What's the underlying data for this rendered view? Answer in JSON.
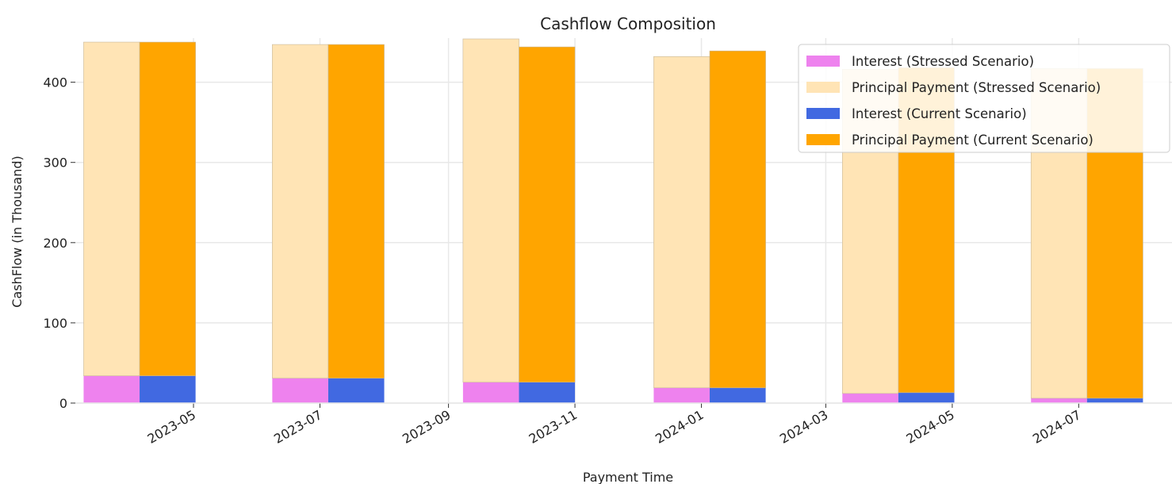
{
  "chart_data": {
    "type": "bar",
    "stacked": true,
    "title": "Cashflow Composition",
    "xlabel": "Payment Time",
    "ylabel": "CashFlow (in Thousand)",
    "ylim": [
      0,
      455
    ],
    "yticks": [
      0,
      100,
      200,
      300,
      400
    ],
    "xlim": [
      "2023-03-05",
      "2024-08-15"
    ],
    "xticks": [
      "2023-05",
      "2023-07",
      "2023-09",
      "2023-11",
      "2024-01",
      "2024-03",
      "2024-05",
      "2024-07"
    ],
    "grid": true,
    "legend_position": "top-right",
    "groups": [
      {
        "date": "2023-04-05",
        "stressed_interest": 34,
        "stressed_principal": 416,
        "current_interest": 34,
        "current_principal": 416
      },
      {
        "date": "2023-07-05",
        "stressed_interest": 31,
        "stressed_principal": 416,
        "current_interest": 31,
        "current_principal": 416
      },
      {
        "date": "2023-10-05",
        "stressed_interest": 26,
        "stressed_principal": 428,
        "current_interest": 26,
        "current_principal": 418
      },
      {
        "date": "2024-01-05",
        "stressed_interest": 19,
        "stressed_principal": 413,
        "current_interest": 19,
        "current_principal": 420
      },
      {
        "date": "2024-04-05",
        "stressed_interest": 12,
        "stressed_principal": 404,
        "current_interest": 13,
        "current_principal": 405
      },
      {
        "date": "2024-07-05",
        "stressed_interest": 6,
        "stressed_principal": 411,
        "current_interest": 6,
        "current_principal": 411
      }
    ],
    "series": [
      {
        "name": "Interest (Stressed Scenario)",
        "key": "stressed_interest",
        "color": "#ee82ee"
      },
      {
        "name": "Principal Payment (Stressed Scenario)",
        "key": "stressed_principal",
        "color": "#ffe4b5"
      },
      {
        "name": "Interest (Current Scenario)",
        "key": "current_interest",
        "color": "#4169e1"
      },
      {
        "name": "Principal Payment (Current Scenario)",
        "key": "current_principal",
        "color": "#ffa500"
      }
    ]
  }
}
